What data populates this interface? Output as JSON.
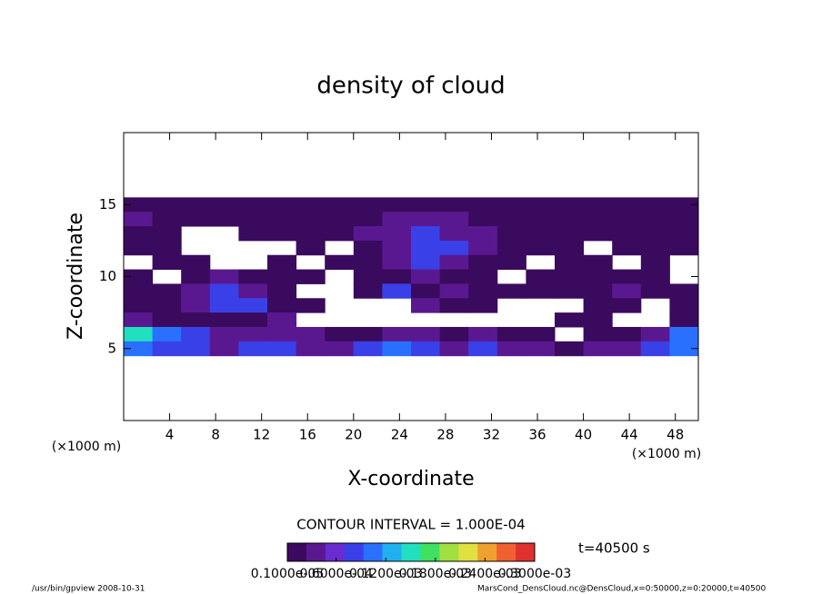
{
  "chart_data": {
    "type": "heatmap",
    "title": "density of cloud",
    "x_label": "X-coordinate",
    "y_label": "Z-coordinate",
    "x_unit_left": "(×1000 m)",
    "x_unit_right": "(×1000 m)",
    "contour_note": "CONTOUR INTERVAL = 1.000E-04",
    "time_label": "t=40500 s",
    "footer_left": "/usr/bin/gpview   2008-10-31",
    "footer_right": "MarsCond_DensCloud.nc@DensCloud,x=0:50000,z=0:20000,t=40500",
    "xlim": [
      0,
      50
    ],
    "ylim": [
      0,
      20
    ],
    "xticks": [
      4,
      8,
      12,
      16,
      20,
      24,
      28,
      32,
      36,
      40,
      44,
      48
    ],
    "yticks": [
      5,
      10,
      15
    ],
    "x": [
      1.25,
      3.75,
      6.25,
      8.75,
      11.25,
      13.75,
      16.25,
      18.75,
      21.25,
      23.75,
      26.25,
      28.75,
      31.25,
      33.75,
      36.25,
      38.75,
      41.25,
      43.75,
      46.25,
      48.75
    ],
    "z": [
      15,
      14,
      13,
      12,
      11,
      10,
      9,
      8,
      7,
      6,
      5
    ],
    "values": [
      [
        2e-05,
        2e-05,
        2e-05,
        2e-05,
        2e-05,
        2e-05,
        2e-05,
        2e-05,
        2e-05,
        2e-05,
        2e-05,
        2e-05,
        2e-05,
        2e-05,
        2e-05,
        2e-05,
        2e-05,
        2e-05,
        2e-05,
        2e-05
      ],
      [
        4e-05,
        2e-05,
        2e-05,
        2e-05,
        2e-05,
        2e-05,
        2e-05,
        2e-05,
        2e-05,
        4e-05,
        4e-05,
        4e-05,
        2e-05,
        2e-05,
        2e-05,
        2e-05,
        2e-05,
        2e-05,
        2e-05,
        2e-05
      ],
      [
        2e-05,
        2e-05,
        null,
        null,
        2e-05,
        2e-05,
        2e-05,
        2e-05,
        4e-05,
        4e-05,
        7e-05,
        4e-05,
        4e-05,
        2e-05,
        2e-05,
        2e-05,
        2e-05,
        2e-05,
        2e-05,
        2e-05
      ],
      [
        2e-05,
        2e-05,
        null,
        null,
        null,
        null,
        2e-05,
        null,
        2e-05,
        4e-05,
        7e-05,
        7e-05,
        4e-05,
        2e-05,
        2e-05,
        2e-05,
        null,
        2e-05,
        2e-05,
        2e-05
      ],
      [
        null,
        2e-05,
        2e-05,
        null,
        null,
        2e-05,
        null,
        2e-05,
        2e-05,
        4e-05,
        7e-05,
        4e-05,
        2e-05,
        2e-05,
        null,
        2e-05,
        2e-05,
        null,
        2e-05,
        null
      ],
      [
        2e-05,
        null,
        2e-05,
        4e-05,
        2e-05,
        2e-05,
        2e-05,
        null,
        2e-05,
        2e-05,
        4e-05,
        2e-05,
        2e-05,
        null,
        2e-05,
        2e-05,
        2e-05,
        2e-05,
        2e-05,
        null
      ],
      [
        2e-05,
        2e-05,
        4e-05,
        7e-05,
        4e-05,
        2e-05,
        null,
        null,
        2e-05,
        7e-05,
        2e-05,
        4e-05,
        2e-05,
        2e-05,
        2e-05,
        2e-05,
        2e-05,
        4e-05,
        2e-05,
        2e-05
      ],
      [
        2e-05,
        2e-05,
        4e-05,
        7e-05,
        7e-05,
        2e-05,
        2e-05,
        null,
        null,
        null,
        4e-05,
        2e-05,
        2e-05,
        null,
        null,
        null,
        2e-05,
        2e-05,
        null,
        2e-05
      ],
      [
        4e-05,
        2e-05,
        2e-05,
        2e-05,
        2e-05,
        4e-05,
        null,
        null,
        null,
        null,
        null,
        null,
        null,
        null,
        null,
        2e-05,
        2e-05,
        null,
        null,
        2e-05
      ],
      [
        0.00015,
        0.0001,
        7e-05,
        4e-05,
        4e-05,
        4e-05,
        4e-05,
        2e-05,
        2e-05,
        4e-05,
        4e-05,
        2e-05,
        4e-05,
        2e-05,
        2e-05,
        null,
        2e-05,
        2e-05,
        4e-05,
        0.0001
      ],
      [
        0.0001,
        7e-05,
        7e-05,
        4e-05,
        7e-05,
        7e-05,
        4e-05,
        4e-05,
        7e-05,
        0.0001,
        7e-05,
        4e-05,
        7e-05,
        4e-05,
        4e-05,
        2e-05,
        4e-05,
        4e-05,
        7e-05,
        0.0001
      ]
    ],
    "colorbar_lim": [
      1e-06,
      0.0003
    ],
    "colorbar_ticks": [
      {
        "value": 1e-06,
        "label": "0.1000e-05"
      },
      {
        "value": 6e-05,
        "label": "0.6000e-04"
      },
      {
        "value": 0.00012,
        "label": "0.1200e-03"
      },
      {
        "value": 0.00018,
        "label": "0.1800e-03"
      },
      {
        "value": 0.00024,
        "label": "0.2400e-03"
      },
      {
        "value": 0.0003,
        "label": "0.3000e-03"
      }
    ],
    "colors": [
      "#3a0a5e",
      "#5a1890",
      "#6a2bd0",
      "#3a40e8",
      "#2a70ff",
      "#20b0f0",
      "#20e0c0",
      "#40e060",
      "#a0e040",
      "#e0e040",
      "#f0a030",
      "#f06030",
      "#e03030"
    ]
  }
}
